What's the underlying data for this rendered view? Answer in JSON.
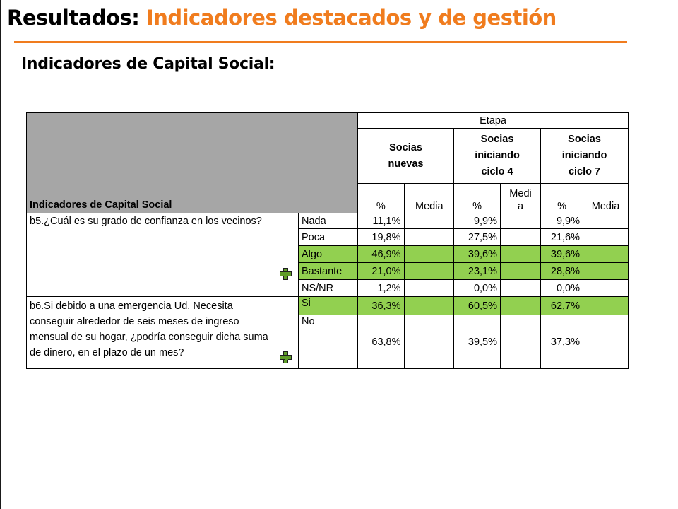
{
  "slide": {
    "title_prefix": "Resultados: ",
    "title_accent": "Indicadores destacados y de gestión",
    "subtitle": "Indicadores de Capital Social:"
  },
  "table": {
    "corner_label": "Indicadores de Capital Social",
    "group_header": "Etapa",
    "stages": [
      {
        "line1": "Socias",
        "line2": "nuevas",
        "line3": ""
      },
      {
        "line1": "Socias",
        "line2": "iniciando",
        "line3": "ciclo 4"
      },
      {
        "line1": "Socias",
        "line2": "iniciando",
        "line3": "ciclo 7"
      }
    ],
    "subheaders": {
      "pct": "%",
      "media": "Media",
      "media_wrapped_1": "Medi",
      "media_wrapped_2": "a"
    },
    "questions": [
      {
        "text": "b5.¿Cuál es su grado de confianza en los vecinos?",
        "rows": [
          {
            "label": "Nada",
            "values": [
              "11,1%",
              "9,9%",
              "9,9%"
            ],
            "highlight": false
          },
          {
            "label": "Poca",
            "values": [
              "19,8%",
              "27,5%",
              "21,6%"
            ],
            "highlight": false
          },
          {
            "label": "Algo",
            "values": [
              "46,9%",
              "39,6%",
              "39,6%"
            ],
            "highlight": true
          },
          {
            "label": "Bastante",
            "values": [
              "21,0%",
              "23,1%",
              "28,8%"
            ],
            "highlight": true
          },
          {
            "label": "NS/NR",
            "values": [
              "1,2%",
              "0,0%",
              "0,0%"
            ],
            "highlight": false
          }
        ]
      },
      {
        "text": "b6.Si debido a una emergencia Ud. Necesita conseguir alrededor de seis meses de ingreso mensual de su hogar, ¿podría conseguir dicha suma de dinero, en el plazo de un mes?",
        "rows": [
          {
            "label": "Si",
            "values": [
              "36,3%",
              "60,5%",
              "62,7%"
            ],
            "highlight": true
          },
          {
            "label": "No",
            "values": [
              "63,8%",
              "39,5%",
              "37,3%"
            ],
            "highlight": false
          }
        ]
      }
    ],
    "marker_icon": "green-plus-icon"
  }
}
